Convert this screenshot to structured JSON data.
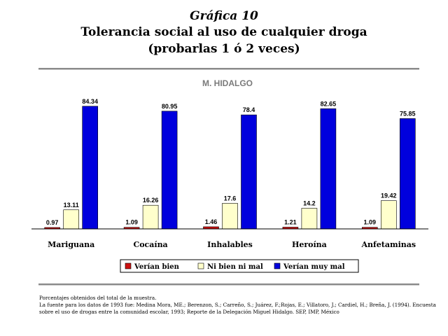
{
  "header": {
    "chart_number": "Gráfica 10",
    "title_line1": "Tolerancia social al uso de cualquier droga",
    "title_line2": "(probarlas 1 ó 2 veces)"
  },
  "chart_data": {
    "type": "bar",
    "title": "M. HIDALGO",
    "categories": [
      "Mariguana",
      "Cocaína",
      "Inhalables",
      "Heroína",
      "Anfetaminas"
    ],
    "series": [
      {
        "name": "Verían bien",
        "color": "#cc1111",
        "values": [
          0.97,
          1.09,
          1.46,
          1.21,
          1.09
        ]
      },
      {
        "name": "Ni bien ni mal",
        "color": "#ffffcc",
        "values": [
          13.11,
          16.26,
          17.6,
          14.2,
          19.42
        ]
      },
      {
        "name": "Verían muy mal",
        "color": "#0000dd",
        "values": [
          84.34,
          80.95,
          78.4,
          82.65,
          75.85
        ]
      }
    ],
    "ylim": [
      0,
      90
    ],
    "grid": false,
    "legend": "bottom"
  },
  "footnote": {
    "line1": "Porcentajes obtenidos del total de la muestra.",
    "line2": "La fuente para los datos de 1993 fue: Medina Mora, ME.; Berenzon, S.; Carreño, S.; Juárez, F.;Rojas, E.; Villatoro, J.; Cardiel, H.; Breña, J. (1994). Encuesta sobre el uso de drogas entre la comunidad escolar, 1993; Reporte de la Delegación Miguel Hidalgo. SEP, IMP, México"
  }
}
